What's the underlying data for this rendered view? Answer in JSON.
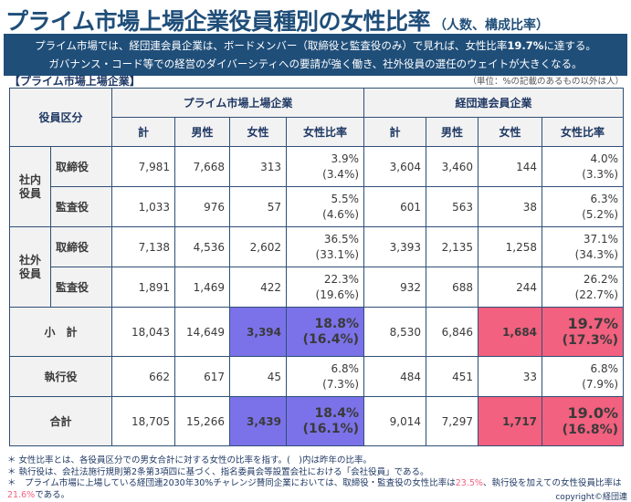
{
  "title": {
    "main": "プライム市場上場企業役員種別の女性比率",
    "sub": "（人数、構成比率）"
  },
  "banner": {
    "line1_pre": "プライム市場では、経団連会員企業は、ボードメンバー（取締役と監査役のみ）で見れば、女性比率",
    "line1_highlight": "19.7%",
    "line1_post": "に達する。",
    "line2": "ガバナンス・コード等での経営のダイバーシティへの要請が強く働き、社外役員の選任のウェイトが大きくなる。"
  },
  "section_label": "【プライム市場上場企業】",
  "unit_label": "（単位：%の記載のあるもの以外は人）",
  "table": {
    "corner_header": "役員区分",
    "group_headers": [
      "プライム市場上場企業",
      "経団連会員企業"
    ],
    "column_headers": [
      "計",
      "男性",
      "女性",
      "女性比率",
      "計",
      "男性",
      "女性",
      "女性比率"
    ],
    "groups": [
      {
        "label": "社内役員",
        "label_lines": [
          "社内",
          "役員"
        ],
        "rows": [
          {
            "label": "取締役",
            "prime": [
              "7,981",
              "7,668",
              "313"
            ],
            "prime_ratio": "3.9%",
            "prime_ratio_prev": "(3.4%)",
            "keidanren": [
              "3,604",
              "3,460",
              "144"
            ],
            "keidanren_ratio": "4.0%",
            "keidanren_ratio_prev": "(3.3%)"
          },
          {
            "label": "監査役",
            "prime": [
              "1,033",
              "976",
              "57"
            ],
            "prime_ratio": "5.5%",
            "prime_ratio_prev": "(4.6%)",
            "keidanren": [
              "601",
              "563",
              "38"
            ],
            "keidanren_ratio": "6.3%",
            "keidanren_ratio_prev": "(5.2%)"
          }
        ]
      },
      {
        "label": "社外役員",
        "label_lines": [
          "社外",
          "役員"
        ],
        "rows": [
          {
            "label": "取締役",
            "prime": [
              "7,138",
              "4,536",
              "2,602"
            ],
            "prime_ratio": "36.5%",
            "prime_ratio_prev": "(33.1%)",
            "keidanren": [
              "3,393",
              "2,135",
              "1,258"
            ],
            "keidanren_ratio": "37.1%",
            "keidanren_ratio_prev": "(34.3%)"
          },
          {
            "label": "監査役",
            "prime": [
              "1,891",
              "1,469",
              "422"
            ],
            "prime_ratio": "22.3%",
            "prime_ratio_prev": "(19.6%)",
            "keidanren": [
              "932",
              "688",
              "244"
            ],
            "keidanren_ratio": "26.2%",
            "keidanren_ratio_prev": "(22.7%)"
          }
        ]
      }
    ],
    "summary_rows": [
      {
        "label": "小　計",
        "prime": [
          "18,043",
          "14,649",
          "3,394"
        ],
        "prime_ratio": "18.8%",
        "prime_ratio_prev": "(16.4%)",
        "keidanren": [
          "8,530",
          "6,846",
          "1,684"
        ],
        "keidanren_ratio": "19.7%",
        "keidanren_ratio_prev": "(17.3%)"
      },
      {
        "label": "執行役",
        "prime": [
          "662",
          "617",
          "45"
        ],
        "prime_ratio": "6.8%",
        "prime_ratio_prev": "(7.3%)",
        "keidanren": [
          "484",
          "451",
          "33"
        ],
        "keidanren_ratio": "6.8%",
        "keidanren_ratio_prev": "(7.9%)"
      },
      {
        "label": "合計",
        "prime": [
          "18,705",
          "15,266",
          "3,439"
        ],
        "prime_ratio": "18.4%",
        "prime_ratio_prev": "(16.1%)",
        "keidanren": [
          "9,014",
          "7,297",
          "1,717"
        ],
        "keidanren_ratio": "19.0%",
        "keidanren_ratio_prev": "(16.8%)"
      }
    ]
  },
  "notes": {
    "n1": "＊ 女性比率とは、各役員区分での男女合計に対する女性の比率を指す。(　)内は昨年の比率。",
    "n2": "＊ 執行役は、会社法施行規則第2条第3項四に基づく、指名委員会等設置会社における「会社役員」である。",
    "n3_pre": "＊　プライム市場に上場している経団連2030年30%チャレンジ賛同企業においては、取締役・監査役の女性比率は",
    "n3_hl1": "23.5%",
    "n3_mid": "、執行役を加えての女性役員比率は",
    "n3_hl2": "21.6%",
    "n3_post": "である。"
  },
  "copyright": "copyright©経団連",
  "colors": {
    "navy": "#1f4e79",
    "prime_highlight": "#7b72e9",
    "keidanren_highlight": "#f2617f",
    "header_bg": "#f2f2f2"
  }
}
